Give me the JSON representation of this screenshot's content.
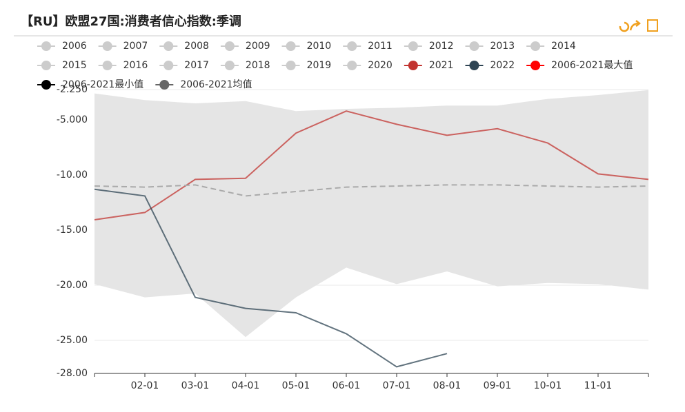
{
  "chart_data": {
    "type": "line",
    "title": "【RU】欧盟27国:消费者信心指数:季调",
    "inactive_legend": [
      "2006",
      "2007",
      "2008",
      "2009",
      "2010",
      "2011",
      "2012",
      "2013",
      "2014",
      "2015",
      "2016",
      "2017",
      "2018",
      "2019",
      "2020"
    ],
    "categories": [
      null,
      "02-01",
      "03-01",
      "04-01",
      "05-01",
      "06-01",
      "07-01",
      "08-01",
      "09-01",
      "10-01",
      "11-01",
      null
    ],
    "series": [
      {
        "name": "2021",
        "color": "#c23531",
        "values": [
          -14.06,
          -13.4,
          -10.4,
          -10.3,
          -6.2,
          -4.2,
          -5.4,
          -6.4,
          -5.8,
          -7.1,
          -9.9,
          -10.4
        ]
      },
      {
        "name": "2022",
        "color": "#2f4554",
        "values": [
          -11.3,
          -11.9,
          -21.1,
          -22.1,
          -22.5,
          -24.4,
          -27.4,
          -26.2,
          null,
          null,
          null,
          null
        ]
      },
      {
        "name": "2006-2021最大值",
        "color": "#ff0000",
        "band": "upper",
        "values": [
          -2.6,
          -3.2,
          -3.5,
          -3.3,
          -4.2,
          -4.0,
          -3.9,
          -3.7,
          -3.7,
          -3.1,
          -2.75,
          -2.3
        ]
      },
      {
        "name": "2006-2021最小值",
        "color": "#000000",
        "band": "lower",
        "values": [
          -19.9,
          -21.1,
          -20.75,
          -24.7,
          -21.1,
          -18.4,
          -19.9,
          -18.75,
          -20.1,
          -19.8,
          -19.9,
          -20.4
        ]
      },
      {
        "name": "2006-2021均值",
        "color": "#666666",
        "dashed": true,
        "values": [
          -11.0,
          -11.1,
          -10.9,
          -11.9,
          -11.5,
          -11.1,
          -11.0,
          -10.9,
          -10.9,
          -11.0,
          -11.1,
          -11.0
        ]
      }
    ],
    "ylim": [
      -28,
      -2.25
    ],
    "yticks": [
      {
        "value": -28,
        "label": "-28.00"
      },
      {
        "value": -25,
        "label": "-25.00"
      },
      {
        "value": -20,
        "label": "-20.00"
      },
      {
        "value": -15,
        "label": "-15.00"
      },
      {
        "value": -10,
        "label": "-10.00"
      },
      {
        "value": -5,
        "label": "-5.000"
      },
      {
        "value": -2.25,
        "label": "-2.250"
      }
    ],
    "grid": true
  }
}
